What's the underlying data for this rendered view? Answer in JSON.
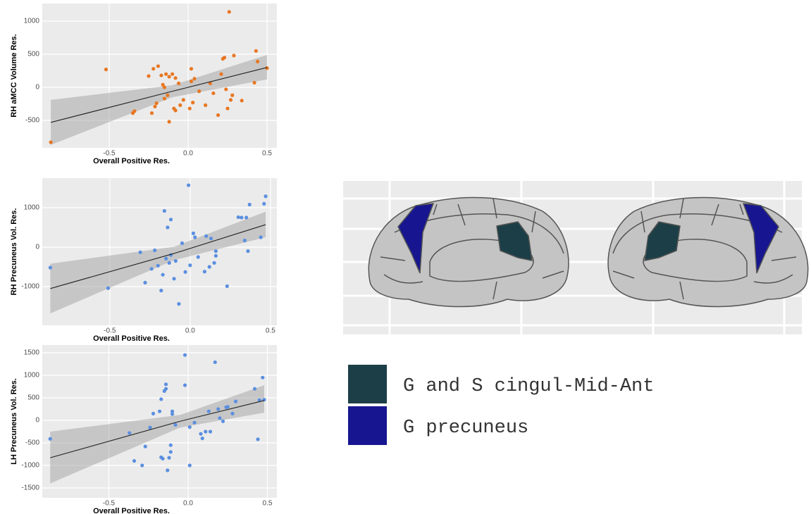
{
  "chart_data": [
    {
      "type": "scatter",
      "x_label": "Overall Positive Res.",
      "y_label": "RH aMCC Volume Res.",
      "color": "#e87722",
      "x": [
        -0.87,
        -0.52,
        -0.35,
        -0.34,
        -0.25,
        -0.23,
        -0.22,
        -0.21,
        -0.2,
        -0.19,
        -0.17,
        -0.16,
        -0.15,
        -0.15,
        -0.14,
        -0.13,
        -0.12,
        -0.12,
        -0.1,
        -0.09,
        -0.08,
        -0.08,
        -0.06,
        -0.05,
        -0.03,
        0.01,
        0.02,
        0.02,
        0.03,
        0.04,
        0.07,
        0.11,
        0.14,
        0.16,
        0.19,
        0.21,
        0.22,
        0.23,
        0.24,
        0.25,
        0.26,
        0.27,
        0.28,
        0.29,
        0.34,
        0.42,
        0.43,
        0.44,
        0.5
      ],
      "values": [
        -830,
        270,
        -390,
        -360,
        170,
        -390,
        280,
        -290,
        -240,
        320,
        180,
        40,
        0,
        -170,
        200,
        -120,
        160,
        -520,
        200,
        -320,
        140,
        -350,
        60,
        -270,
        -190,
        -320,
        280,
        90,
        -230,
        130,
        -60,
        -270,
        60,
        -90,
        -420,
        200,
        430,
        450,
        -30,
        -320,
        1140,
        -190,
        -120,
        480,
        -200,
        70,
        550,
        390,
        290
      ],
      "fit": {
        "x": [
          -0.87,
          -0.1,
          0.5
        ],
        "y": [
          -530,
          -60,
          300
        ],
        "lower": [
          -870,
          -150,
          120
        ],
        "upper": [
          -190,
          30,
          490
        ]
      },
      "xlim": [
        -0.924,
        0.5625
      ],
      "ylim": [
        -915,
        1266
      ],
      "xticks": [
        -0.5,
        {
          "value": 0,
          "label": "0.0"
        },
        0.5
      ],
      "yticks": [
        -500,
        0,
        500,
        1000
      ],
      "grid": true
    },
    {
      "type": "scatter",
      "x_label": "Overall Positive Res.",
      "y_label": "RH Precuneus Vol. Res.",
      "color": "#5b8fe0",
      "x": [
        -0.87,
        -0.51,
        -0.31,
        -0.28,
        -0.24,
        -0.22,
        -0.2,
        -0.18,
        -0.17,
        -0.16,
        -0.15,
        -0.14,
        -0.13,
        -0.12,
        -0.12,
        -0.1,
        -0.09,
        -0.07,
        -0.05,
        -0.03,
        -0.01,
        0,
        0.02,
        0.03,
        0.05,
        0.09,
        0.1,
        0.12,
        0.13,
        0.15,
        0.16,
        0.16,
        0.23,
        0.3,
        0.32,
        0.34,
        0.35,
        0.36,
        0.37,
        0.44,
        0.46,
        0.47
      ],
      "values": [
        -520,
        -1040,
        -130,
        -900,
        -550,
        -80,
        -470,
        -1100,
        -700,
        920,
        -290,
        500,
        -400,
        700,
        -200,
        -800,
        -350,
        -1440,
        100,
        -630,
        1570,
        -460,
        350,
        250,
        -250,
        -620,
        280,
        -500,
        220,
        -400,
        -220,
        -100,
        -990,
        760,
        750,
        170,
        750,
        -100,
        1080,
        250,
        1100,
        1290
      ],
      "fit": {
        "x": [
          -0.87,
          -0.1,
          0.47
        ],
        "y": [
          -1050,
          -160,
          570
        ],
        "lower": [
          -1680,
          -330,
          250
        ],
        "upper": [
          -420,
          10,
          900
        ]
      },
      "xlim": [
        -0.92,
        0.54
      ],
      "ylim": [
        -1982,
        1750
      ],
      "xticks": [
        -0.5,
        {
          "value": 0,
          "label": "0.0"
        },
        0.5
      ],
      "yticks": [
        -1000,
        0,
        1000
      ],
      "grid": true
    },
    {
      "type": "scatter",
      "x_label": "Overall Positive Res.",
      "y_label": "LH Precuneus Vol. Res.",
      "color": "#5b8fe0",
      "x": [
        -0.87,
        -0.37,
        -0.34,
        -0.29,
        -0.27,
        -0.24,
        -0.22,
        -0.18,
        -0.17,
        -0.17,
        -0.16,
        -0.15,
        -0.14,
        -0.14,
        -0.13,
        -0.12,
        -0.11,
        -0.11,
        -0.1,
        -0.1,
        -0.08,
        -0.02,
        -0.02,
        0.01,
        0.01,
        0.04,
        0.08,
        0.09,
        0.11,
        0.13,
        0.14,
        0.17,
        0.19,
        0.2,
        0.22,
        0.24,
        0.25,
        0.28,
        0.3,
        0.42,
        0.44,
        0.45,
        0.47,
        0.48
      ],
      "values": [
        -410,
        -280,
        -900,
        -1000,
        -580,
        -160,
        150,
        200,
        470,
        -820,
        -850,
        650,
        700,
        800,
        -1110,
        -830,
        -550,
        -700,
        200,
        140,
        -100,
        1450,
        780,
        -1000,
        -150,
        -50,
        -300,
        -400,
        -250,
        200,
        -250,
        1290,
        250,
        50,
        -20,
        290,
        300,
        150,
        420,
        700,
        -420,
        450,
        950,
        460
      ],
      "fit": {
        "x": [
          -0.87,
          -0.05,
          0.48
        ],
        "y": [
          -830,
          -20,
          440
        ],
        "lower": [
          -1400,
          -160,
          170
        ],
        "upper": [
          -250,
          120,
          780
        ]
      },
      "xlim": [
        -0.92,
        0.56
      ],
      "ylim": [
        -1719,
        1672
      ],
      "xticks": [
        -0.5,
        {
          "value": 0,
          "label": "0.0"
        },
        0.5
      ],
      "yticks": [
        -1500,
        -1000,
        -500,
        0,
        500,
        1000,
        1500
      ],
      "grid": true
    }
  ],
  "brain_legend": {
    "items": [
      {
        "label": "G and S cingul-Mid-Ant",
        "color": "#1c3f47"
      },
      {
        "label": "G precuneus",
        "color": "#171690"
      }
    ]
  }
}
